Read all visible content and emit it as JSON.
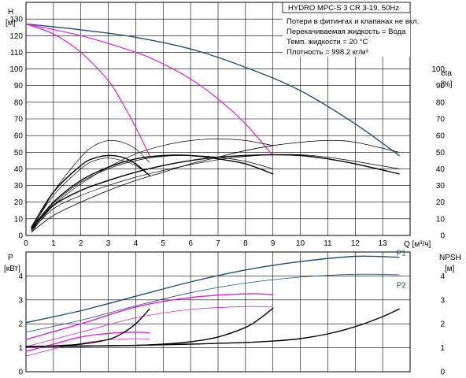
{
  "colors": {
    "pump_blue": "#1f4e79",
    "magenta": "#e020d8",
    "black": "#000000",
    "grid": "#000000"
  },
  "chart_data": [
    {
      "type": "line",
      "title": "HYDRO MPC-S 3 CR 3-19, 50Hz",
      "notes": [
        "Потери в фитингах и клапанах не вкл.",
        "Перекачиваемая жидкость = Вода",
        "Темп. жидкости = 20 °C",
        "Плотность = 998.2 кг/м³"
      ],
      "xlabel": "Q [м³/ч]",
      "xlim": [
        0,
        14
      ],
      "xticks": [
        0,
        1,
        2,
        3,
        4,
        5,
        6,
        7,
        8,
        9,
        10,
        11,
        12,
        13
      ],
      "ylabel_left": "H",
      "ylabel_left_unit": "[м]",
      "ylim_left": [
        0,
        140
      ],
      "yticks_left": [
        0,
        10,
        20,
        30,
        40,
        50,
        60,
        70,
        80,
        90,
        100,
        110,
        120,
        130
      ],
      "ylabel_right": "eta",
      "ylabel_right_unit": "[%]",
      "ylim_right": [
        0,
        140
      ],
      "yticks_right": [
        0,
        10,
        20,
        30,
        40,
        50,
        60,
        70,
        80,
        90,
        100
      ],
      "grid": true,
      "series": [
        {
          "axis": "left",
          "color": "#1f4e79",
          "width": 1.4,
          "x": [
            0,
            2,
            4,
            6,
            8,
            10,
            12,
            13.6
          ],
          "y": [
            127,
            123.5,
            119,
            112,
            101,
            87,
            67,
            48
          ]
        },
        {
          "axis": "left",
          "color": "#e020d8",
          "width": 1.2,
          "x": [
            0,
            2,
            4,
            5,
            6,
            7,
            8,
            9
          ],
          "y": [
            127,
            120,
            110,
            103,
            94,
            82,
            67,
            48
          ]
        },
        {
          "axis": "left",
          "color": "#e020d8",
          "width": 1.2,
          "x": [
            0,
            1,
            2,
            3,
            3.5,
            4,
            4.5
          ],
          "y": [
            127,
            121,
            110,
            93,
            80,
            65,
            48
          ]
        },
        {
          "axis": "right",
          "color": "#000000",
          "width": 1.4,
          "x": [
            0.2,
            1,
            2,
            3,
            4,
            5,
            6,
            7,
            8,
            9,
            10,
            11,
            12,
            13.6
          ],
          "y": [
            4,
            18,
            27,
            33,
            38,
            42,
            45,
            47,
            48,
            48.5,
            48,
            46,
            43,
            37
          ]
        },
        {
          "axis": "right",
          "color": "#000000",
          "width": 0.8,
          "x": [
            0.2,
            1,
            2,
            3,
            4,
            5,
            6,
            7,
            8,
            9,
            10,
            11,
            12,
            13.6
          ],
          "y": [
            2,
            12,
            20,
            27,
            33,
            38,
            43,
            47,
            51,
            54,
            56,
            57,
            56,
            50
          ]
        },
        {
          "axis": "right",
          "color": "#000000",
          "width": 0.7,
          "x": [
            0.2,
            1,
            2,
            3,
            4,
            5,
            6,
            7,
            8,
            9,
            10,
            11,
            12,
            13.6
          ],
          "y": [
            3,
            16,
            24,
            30,
            35,
            39,
            42.5,
            45.5,
            47.5,
            48.5,
            48.5,
            47,
            44.5,
            40
          ]
        },
        {
          "axis": "right",
          "color": "#000000",
          "width": 1.4,
          "x": [
            0.2,
            1,
            2,
            3,
            4,
            5,
            6,
            7,
            8,
            9
          ],
          "y": [
            4,
            20,
            33,
            41,
            46,
            48,
            48,
            46,
            43,
            37
          ]
        },
        {
          "axis": "right",
          "color": "#000000",
          "width": 0.7,
          "x": [
            0.2,
            1,
            2,
            3,
            4,
            5,
            6,
            7,
            8,
            9
          ],
          "y": [
            2,
            18,
            31,
            41,
            49,
            54,
            57,
            58,
            57,
            54
          ]
        },
        {
          "axis": "right",
          "color": "#000000",
          "width": 0.7,
          "x": [
            0.2,
            1,
            2,
            3,
            4,
            5,
            6,
            7,
            8,
            9
          ],
          "y": [
            3,
            19,
            32,
            40,
            45,
            47.5,
            48,
            47,
            44.5,
            40
          ]
        },
        {
          "axis": "right",
          "color": "#000000",
          "width": 1.4,
          "x": [
            0.2,
            1,
            2,
            2.5,
            3,
            3.5,
            4,
            4.5
          ],
          "y": [
            5,
            26,
            42,
            46.5,
            48,
            47,
            43,
            36
          ]
        },
        {
          "axis": "right",
          "color": "#000000",
          "width": 0.7,
          "x": [
            0.2,
            1,
            2,
            2.5,
            3,
            3.5,
            4,
            4.5
          ],
          "y": [
            3,
            26,
            47,
            54,
            57,
            56,
            52,
            44
          ]
        },
        {
          "axis": "right",
          "color": "#000000",
          "width": 0.7,
          "x": [
            0.2,
            1,
            2,
            2.5,
            3,
            3.5,
            4,
            4.5
          ],
          "y": [
            4,
            24,
            40,
            45,
            46.5,
            45,
            42,
            36
          ]
        }
      ]
    },
    {
      "type": "line",
      "xlim": [
        0,
        14
      ],
      "ylabel_left": "P",
      "ylabel_left_unit": "[кВт]",
      "ylim_left": [
        0,
        5
      ],
      "yticks_left": [
        0,
        1,
        2,
        3,
        4
      ],
      "ylabel_right": "NPSH",
      "ylabel_right_unit": "[м]",
      "ylim_right": [
        0,
        5
      ],
      "yticks_right": [
        0,
        1,
        2,
        3,
        4
      ],
      "grid": true,
      "series_labels": [
        {
          "text": "P1",
          "x": 13.5,
          "y": 4.95
        },
        {
          "text": "P2",
          "x": 13.5,
          "y": 3.6
        }
      ],
      "series": [
        {
          "axis": "left",
          "name": "P1",
          "color": "#1f4e79",
          "width": 1.4,
          "x": [
            0,
            2,
            4,
            6,
            8,
            10,
            12,
            13.6
          ],
          "y": [
            2.05,
            2.55,
            3.15,
            3.75,
            4.25,
            4.6,
            4.82,
            4.78
          ]
        },
        {
          "axis": "left",
          "name": "P2",
          "color": "#1f4e79",
          "width": 0.8,
          "x": [
            0,
            2,
            4,
            6,
            8,
            10,
            12,
            13.6
          ],
          "y": [
            1.65,
            2.15,
            2.75,
            3.3,
            3.7,
            3.95,
            4.07,
            4.05
          ]
        },
        {
          "axis": "left",
          "color": "#e020d8",
          "width": 1.4,
          "x": [
            0,
            2,
            4,
            6,
            8,
            9
          ],
          "y": [
            1.35,
            2.0,
            2.7,
            3.1,
            3.25,
            3.22
          ]
        },
        {
          "axis": "left",
          "color": "#e020d8",
          "width": 0.8,
          "x": [
            0,
            2,
            4,
            6,
            8,
            9
          ],
          "y": [
            1.05,
            1.65,
            2.25,
            2.6,
            2.72,
            2.7
          ]
        },
        {
          "axis": "left",
          "color": "#e020d8",
          "width": 1.4,
          "x": [
            0,
            1,
            2,
            3,
            4,
            4.5
          ],
          "y": [
            0.85,
            1.15,
            1.45,
            1.6,
            1.65,
            1.62
          ]
        },
        {
          "axis": "left",
          "color": "#e020d8",
          "width": 0.8,
          "x": [
            0,
            1,
            2,
            3,
            4,
            4.5
          ],
          "y": [
            0.65,
            0.95,
            1.18,
            1.33,
            1.38,
            1.36
          ]
        },
        {
          "axis": "right",
          "color": "#000000",
          "width": 1.4,
          "x": [
            0,
            2,
            4,
            6,
            8,
            9,
            10,
            11,
            12,
            13,
            13.6
          ],
          "y": [
            1.05,
            1.07,
            1.1,
            1.15,
            1.22,
            1.28,
            1.38,
            1.58,
            1.88,
            2.3,
            2.62
          ]
        },
        {
          "axis": "right",
          "color": "#000000",
          "width": 1.4,
          "x": [
            0,
            2,
            4,
            5,
            6,
            7,
            8,
            8.5,
            9
          ],
          "y": [
            1.05,
            1.07,
            1.1,
            1.15,
            1.25,
            1.45,
            1.85,
            2.2,
            2.65
          ]
        },
        {
          "axis": "right",
          "color": "#000000",
          "width": 1.4,
          "x": [
            0,
            1,
            2,
            3,
            3.5,
            4,
            4.5
          ],
          "y": [
            1.05,
            1.08,
            1.15,
            1.35,
            1.6,
            2.0,
            2.62
          ]
        }
      ]
    }
  ]
}
